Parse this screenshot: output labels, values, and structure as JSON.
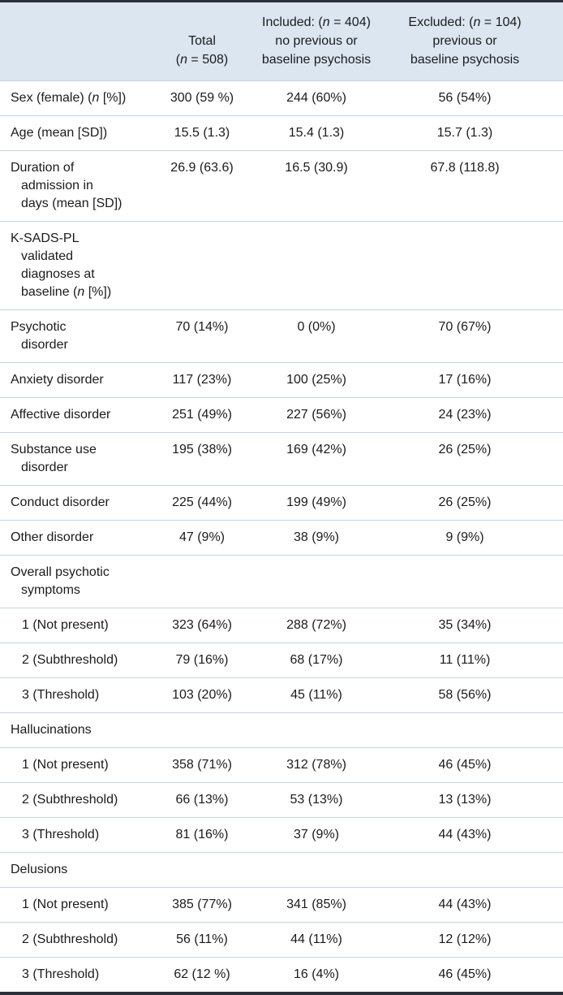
{
  "colors": {
    "header_bg": "#dce6f1",
    "divider": "#c3d4e7",
    "frame": "#2b3039",
    "text": "#1b1b1b"
  },
  "table": {
    "columns": [
      "",
      "Total\n(*n* = 508)",
      "Included: (*n* = 404)\nno previous or\nbaseline psychosis",
      "Excluded: (*n* = 104)\nprevious or\nbaseline psychosis"
    ],
    "rows": [
      {
        "label": "Sex (female) (*n* [%])",
        "total": "300 (59 %)",
        "included": "244 (60%)",
        "excluded": "56 (54%)",
        "indent": false,
        "section": false
      },
      {
        "label": "Age (mean [SD])",
        "total": "15.5 (1.3)",
        "included": "15.4 (1.3)",
        "excluded": "15.7 (1.3)",
        "indent": false,
        "section": false
      },
      {
        "label": "Duration of\nadmission in\ndays (mean [SD])",
        "total": "26.9 (63.6)",
        "included": "16.5 (30.9)",
        "excluded": "67.8 (118.8)",
        "indent": false,
        "section": false
      },
      {
        "label": "K-SADS-PL\nvalidated\ndiagnoses at\nbaseline (*n* [%])",
        "total": "",
        "included": "",
        "excluded": "",
        "indent": false,
        "section": true
      },
      {
        "label": "Psychotic\ndisorder",
        "total": "70 (14%)",
        "included": "0 (0%)",
        "excluded": "70 (67%)",
        "indent": false,
        "section": false
      },
      {
        "label": "Anxiety disorder",
        "total": "117 (23%)",
        "included": "100 (25%)",
        "excluded": "17 (16%)",
        "indent": false,
        "section": false
      },
      {
        "label": "Affective disorder",
        "total": "251 (49%)",
        "included": "227 (56%)",
        "excluded": "24 (23%)",
        "indent": false,
        "section": false
      },
      {
        "label": "Substance use\ndisorder",
        "total": "195 (38%)",
        "included": "169 (42%)",
        "excluded": "26 (25%)",
        "indent": false,
        "section": false
      },
      {
        "label": "Conduct disorder",
        "total": "225 (44%)",
        "included": "199 (49%)",
        "excluded": "26 (25%)",
        "indent": false,
        "section": false
      },
      {
        "label": "Other disorder",
        "total": "47 (9%)",
        "included": "38 (9%)",
        "excluded": "9 (9%)",
        "indent": false,
        "section": false
      },
      {
        "label": "Overall psychotic\nsymptoms",
        "total": "",
        "included": "",
        "excluded": "",
        "indent": false,
        "section": true
      },
      {
        "label": "1 (Not present)",
        "total": "323 (64%)",
        "included": "288 (72%)",
        "excluded": "35 (34%)",
        "indent": true,
        "section": false
      },
      {
        "label": "2 (Subthreshold)",
        "total": "79 (16%)",
        "included": "68 (17%)",
        "excluded": "11 (11%)",
        "indent": true,
        "section": false
      },
      {
        "label": "3 (Threshold)",
        "total": "103 (20%)",
        "included": "45 (11%)",
        "excluded": "58 (56%)",
        "indent": true,
        "section": false
      },
      {
        "label": "Hallucinations",
        "total": "",
        "included": "",
        "excluded": "",
        "indent": false,
        "section": true
      },
      {
        "label": "1 (Not present)",
        "total": "358 (71%)",
        "included": "312 (78%)",
        "excluded": "46 (45%)",
        "indent": true,
        "section": false
      },
      {
        "label": "2 (Subthreshold)",
        "total": "66 (13%)",
        "included": "53 (13%)",
        "excluded": "13 (13%)",
        "indent": true,
        "section": false
      },
      {
        "label": "3 (Threshold)",
        "total": "81 (16%)",
        "included": "37 (9%)",
        "excluded": "44 (43%)",
        "indent": true,
        "section": false
      },
      {
        "label": "Delusions",
        "total": "",
        "included": "",
        "excluded": "",
        "indent": false,
        "section": true
      },
      {
        "label": "1 (Not present)",
        "total": "385 (77%)",
        "included": "341 (85%)",
        "excluded": "44 (43%)",
        "indent": true,
        "section": false
      },
      {
        "label": "2 (Subthreshold)",
        "total": "56 (11%)",
        "included": "44 (11%)",
        "excluded": "12 (12%)",
        "indent": true,
        "section": false
      },
      {
        "label": "3 (Threshold)",
        "total": "62 (12 %)",
        "included": "16 (4%)",
        "excluded": "46 (45%)",
        "indent": true,
        "section": false
      }
    ]
  }
}
